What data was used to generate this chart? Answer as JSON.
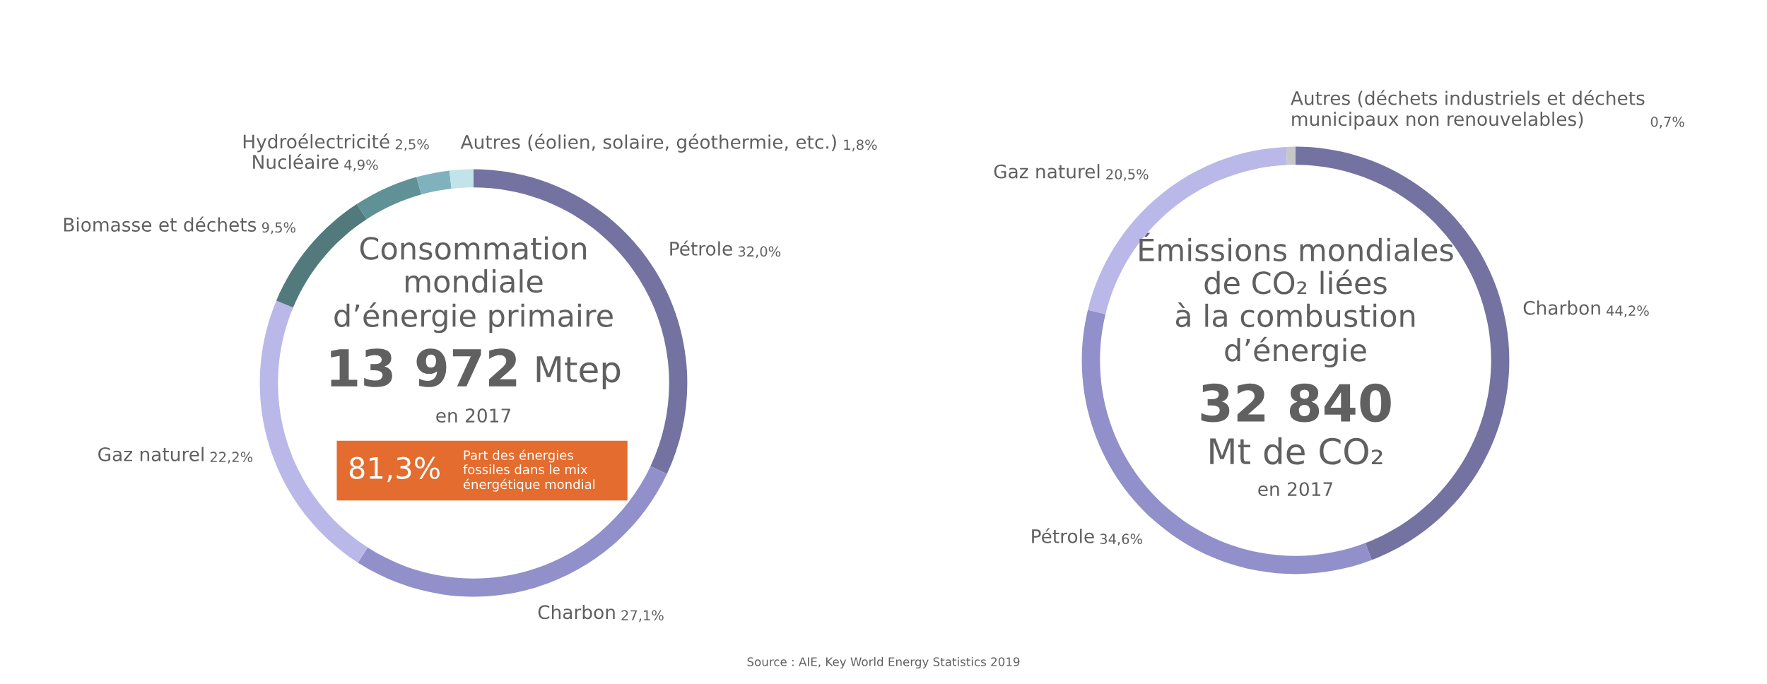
{
  "chart_data": [
    {
      "type": "donut",
      "title": "Consommation\nmondiale\nd’énergie primaire",
      "categories": [
        "Pétrole",
        "Charbon",
        "Gaz naturel",
        "Biomasse et déchets",
        "Nucléaire",
        "Hydroélectricité",
        "Autres (éolien, solaire, géothermie, etc.)"
      ],
      "values": [
        32.0,
        27.1,
        22.2,
        9.5,
        4.9,
        2.5,
        1.8
      ],
      "value_labels": [
        "32,0%",
        "27,1%",
        "22,2%",
        "9,5%",
        "4,9%",
        "2,5%",
        "1,8%"
      ],
      "colors": [
        "#7472a1",
        "#9290ca",
        "#b9b8e9",
        "#527a7d",
        "#5f9197",
        "#7fb2bd",
        "#c1e3e9"
      ],
      "annotations": [
        "13 972",
        "Mtep",
        "en 2017",
        "81,3%",
        "Part des énergies\nfossiles dans le mix\nénergétique mondial",
        "Source : AIE, Key World Energy Statistics 2019"
      ]
    },
    {
      "type": "donut",
      "title": "Émissions mondiales\nde CO₂ liées\nà la combustion\nd’énergie",
      "categories": [
        "Charbon",
        "Pétrole",
        "Gaz naturel",
        "Autres (déchets industriels et déchets\nmunicipaux non renouvelables)"
      ],
      "values": [
        44.2,
        34.6,
        20.5,
        0.7
      ],
      "value_labels": [
        "44,2%",
        "34,6%",
        "20,5%",
        "0,7%"
      ],
      "colors": [
        "#7472a1",
        "#9290ca",
        "#b9b8e9",
        "#c7c7c7"
      ],
      "annotations": [
        "32 840",
        "Mt de CO₂",
        "en 2017"
      ]
    }
  ]
}
